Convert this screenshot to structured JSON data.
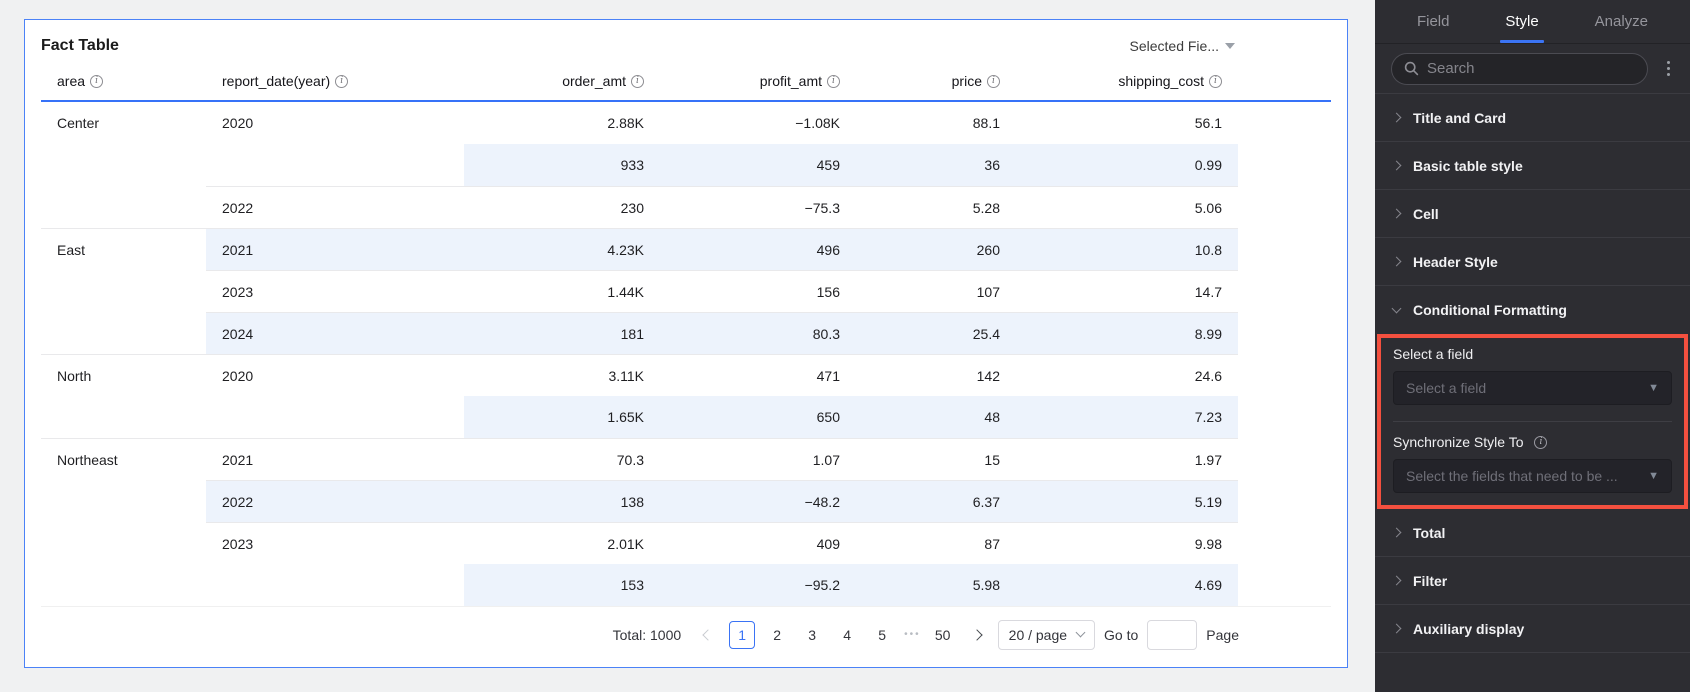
{
  "card": {
    "title": "Fact Table",
    "selected_fields_label": "Selected Fie..."
  },
  "table": {
    "columns": [
      {
        "label": "area",
        "align": "left"
      },
      {
        "label": "report_date(year)",
        "align": "left"
      },
      {
        "label": "order_amt",
        "align": "right"
      },
      {
        "label": "profit_amt",
        "align": "right"
      },
      {
        "label": "price",
        "align": "right"
      },
      {
        "label": "shipping_cost",
        "align": "right"
      }
    ],
    "rows": [
      {
        "area": "Center",
        "area_span": 3,
        "year": "2020",
        "year_span": 2,
        "values": [
          "2.88K",
          "−1.08K",
          "88.1",
          "56.1"
        ],
        "band": false
      },
      {
        "values": [
          "933",
          "459",
          "36",
          "0.99"
        ],
        "band": true
      },
      {
        "year": "2022",
        "values": [
          "230",
          "−75.3",
          "5.28",
          "5.06"
        ],
        "band": false
      },
      {
        "area": "East",
        "area_span": 3,
        "year": "2021",
        "values": [
          "4.23K",
          "496",
          "260",
          "10.8"
        ],
        "band": true
      },
      {
        "year": "2023",
        "values": [
          "1.44K",
          "156",
          "107",
          "14.7"
        ],
        "band": false
      },
      {
        "year": "2024",
        "values": [
          "181",
          "80.3",
          "25.4",
          "8.99"
        ],
        "band": true
      },
      {
        "area": "North",
        "area_span": 2,
        "year": "2020",
        "year_span": 2,
        "values": [
          "3.11K",
          "471",
          "142",
          "24.6"
        ],
        "band": false
      },
      {
        "values": [
          "1.65K",
          "650",
          "48",
          "7.23"
        ],
        "band": true
      },
      {
        "area": "Northeast",
        "area_span": 4,
        "year": "2021",
        "values": [
          "70.3",
          "1.07",
          "15",
          "1.97"
        ],
        "band": false
      },
      {
        "year": "2022",
        "values": [
          "138",
          "−48.2",
          "6.37",
          "5.19"
        ],
        "band": true
      },
      {
        "year": "2023",
        "year_span": 2,
        "values": [
          "2.01K",
          "409",
          "87",
          "9.98"
        ],
        "band": false
      },
      {
        "values": [
          "153",
          "−95.2",
          "5.98",
          "4.69"
        ],
        "band": true
      }
    ]
  },
  "pagination": {
    "total_label": "Total: 1000",
    "items": [
      "1",
      "2",
      "3",
      "4",
      "5",
      "•••",
      "50"
    ],
    "active_page": "1",
    "page_size": "20 / page",
    "goto_label": "Go to",
    "goto_value": "",
    "page_label": "Page"
  },
  "panel": {
    "tabs": [
      {
        "label": "Field"
      },
      {
        "label": "Style",
        "active": true
      },
      {
        "label": "Analyze"
      }
    ],
    "search_placeholder": "Search",
    "sections_before": [
      "Title and Card",
      "Basic table style",
      "Cell",
      "Header Style"
    ],
    "conditional": {
      "label": "Conditional Formatting",
      "select_field_label": "Select a field",
      "select_field_placeholder": "Select a field",
      "sync_label": "Synchronize Style To",
      "sync_placeholder": "Select the fields that need to be ..."
    },
    "sections_after": [
      "Total",
      "Filter",
      "Auxiliary display"
    ]
  },
  "colors": {
    "accent_blue": "#3672f8",
    "card_border_blue": "#4b82f7",
    "row_band": "#edf3fc",
    "highlight_red": "#f4503f",
    "panel_bg": "#2d2d32"
  }
}
